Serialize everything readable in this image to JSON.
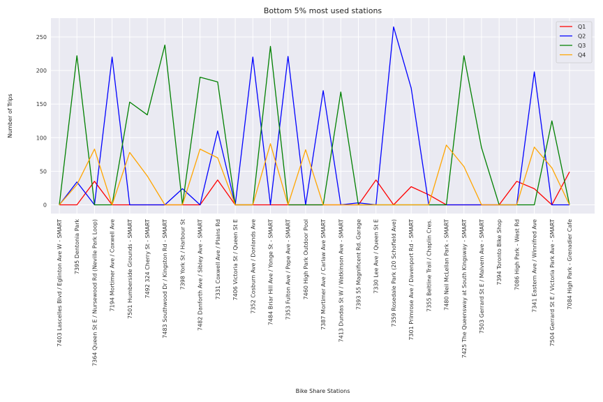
{
  "chart_data": {
    "type": "line",
    "title": "Bottom 5% most used stations",
    "xlabel": "Bike Share Stations",
    "ylabel": "Number of Trips",
    "ylim": [
      -13,
      278
    ],
    "yticks": [
      0,
      50,
      100,
      150,
      200,
      250
    ],
    "grid": true,
    "legend_position": "top-right",
    "categories": [
      "7403 Lascelles Blvd / Eglinton Ave W - SMART",
      "7395 Dentonia Park",
      "7364 Queen St E / Nursewood Rd (Neville Park Loop)",
      "7194 Mortimer Ave / Coxwell Ave",
      "7501 Humberside Grounds - SMART",
      "7492 324 Cherry St - SMART",
      "7483 Southwood Dr / Kingston Rd - SMART",
      "7398 York St / Harbour St",
      "7482 Danforth Ave / Sibley Ave - SMART",
      "7331 Coxwell Ave / Plains Rd",
      "7406 Victoria St / Queen St E",
      "7352 Cosburn Ave / Donlands Ave",
      "7484 Briar Hill Ave / Yonge St - SMART",
      "7353 Fulton Ave / Pape Ave - SMART",
      "7460 High Park Outdoor Pool",
      "7387 Mortimer Ave / Carlaw Ave SMART",
      "7413 Dundas St W / Watkinson Ave - SMART",
      "7393 55 Magnificent Rd. Garage",
      "7330 Lee Ave / Queen St E",
      "7359 Rosedale Park (20 Schofield Ave)",
      "7301 Primrose Ave / Davenport Rd - SMART",
      "7355 Beltline Trail / Chaplin Cres.",
      "7480 Neil McLellan Park - SMART",
      "7425 The Queensway at South Kingsway - SMART",
      "7503 Gerrard St E / Malvern Ave - SMART",
      "7394 Toronto Bike Shop",
      "7086 High Park - West Rd",
      "7341 Eastern Ave / Winnifred Ave",
      "7504 Gerrard St E / Victoria Park Ave - SMART",
      "7084 High Park - Grenadier Cafe"
    ],
    "series": [
      {
        "name": "Q1",
        "color": "#ff0000",
        "values": [
          0,
          0,
          35,
          0,
          0,
          0,
          0,
          0,
          0,
          37,
          0,
          0,
          0,
          0,
          0,
          0,
          0,
          0,
          37,
          0,
          27,
          15,
          0,
          0,
          0,
          0,
          35,
          24,
          0,
          49
        ]
      },
      {
        "name": "Q2",
        "color": "#0000ff",
        "values": [
          0,
          34,
          0,
          220,
          0,
          0,
          0,
          24,
          0,
          110,
          0,
          220,
          0,
          221,
          0,
          170,
          0,
          3,
          0,
          265,
          174,
          0,
          0,
          0,
          0,
          0,
          0,
          198,
          0,
          0
        ]
      },
      {
        "name": "Q3",
        "color": "#008000",
        "values": [
          0,
          222,
          0,
          0,
          153,
          134,
          238,
          0,
          190,
          183,
          0,
          0,
          236,
          0,
          0,
          0,
          168,
          0,
          0,
          0,
          0,
          0,
          0,
          222,
          85,
          0,
          0,
          0,
          125,
          0
        ]
      },
      {
        "name": "Q4",
        "color": "#ffa500",
        "values": [
          0,
          30,
          83,
          0,
          78,
          43,
          0,
          0,
          83,
          70,
          0,
          0,
          91,
          0,
          82,
          0,
          0,
          0,
          0,
          0,
          0,
          0,
          89,
          57,
          0,
          0,
          0,
          86,
          55,
          0
        ]
      }
    ]
  },
  "colors": {
    "plot_background": "#eaeaf2",
    "grid": "#ffffff"
  }
}
